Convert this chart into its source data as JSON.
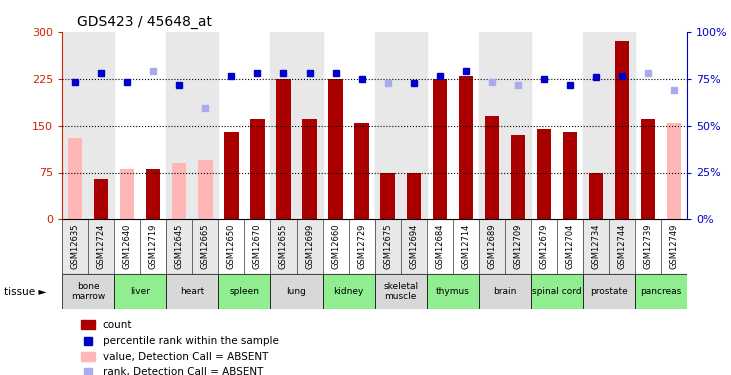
{
  "title": "GDS423 / 45648_at",
  "samples": [
    "GSM12635",
    "GSM12724",
    "GSM12640",
    "GSM12719",
    "GSM12645",
    "GSM12665",
    "GSM12650",
    "GSM12670",
    "GSM12655",
    "GSM12699",
    "GSM12660",
    "GSM12729",
    "GSM12675",
    "GSM12694",
    "GSM12684",
    "GSM12714",
    "GSM12689",
    "GSM12709",
    "GSM12679",
    "GSM12704",
    "GSM12734",
    "GSM12744",
    "GSM12739",
    "GSM12749"
  ],
  "tissues": [
    {
      "name": "bone\nmarrow",
      "start": 0,
      "end": 2,
      "color": "#d8d8d8"
    },
    {
      "name": "liver",
      "start": 2,
      "end": 4,
      "color": "#90ee90"
    },
    {
      "name": "heart",
      "start": 4,
      "end": 6,
      "color": "#d8d8d8"
    },
    {
      "name": "spleen",
      "start": 6,
      "end": 8,
      "color": "#90ee90"
    },
    {
      "name": "lung",
      "start": 8,
      "end": 10,
      "color": "#d8d8d8"
    },
    {
      "name": "kidney",
      "start": 10,
      "end": 12,
      "color": "#90ee90"
    },
    {
      "name": "skeletal\nmuscle",
      "start": 12,
      "end": 14,
      "color": "#d8d8d8"
    },
    {
      "name": "thymus",
      "start": 14,
      "end": 16,
      "color": "#90ee90"
    },
    {
      "name": "brain",
      "start": 16,
      "end": 18,
      "color": "#d8d8d8"
    },
    {
      "name": "spinal cord",
      "start": 18,
      "end": 20,
      "color": "#90ee90"
    },
    {
      "name": "prostate",
      "start": 20,
      "end": 22,
      "color": "#d8d8d8"
    },
    {
      "name": "pancreas",
      "start": 22,
      "end": 24,
      "color": "#90ee90"
    }
  ],
  "xtick_col_gray": "#d8d8d8",
  "bar_values": [
    130,
    65,
    80,
    80,
    90,
    95,
    140,
    160,
    225,
    160,
    225,
    155,
    75,
    75,
    225,
    230,
    165,
    135,
    145,
    140,
    75,
    285,
    160,
    155
  ],
  "bar_absent": [
    true,
    false,
    true,
    false,
    true,
    true,
    false,
    false,
    false,
    false,
    false,
    false,
    false,
    false,
    false,
    false,
    false,
    false,
    false,
    false,
    false,
    false,
    false,
    true
  ],
  "rank_values": [
    220,
    235,
    220,
    237,
    215,
    178,
    230,
    235,
    235,
    235,
    235,
    225,
    218,
    218,
    230,
    237,
    220,
    215,
    225,
    215,
    228,
    230,
    235,
    207
  ],
  "rank_absent": [
    false,
    false,
    false,
    true,
    false,
    true,
    false,
    false,
    false,
    false,
    false,
    false,
    true,
    false,
    false,
    false,
    true,
    true,
    false,
    false,
    false,
    false,
    true,
    true
  ],
  "ylim": [
    0,
    300
  ],
  "yticks": [
    0,
    75,
    150,
    225,
    300
  ],
  "ytick_labels": [
    "0",
    "75",
    "150",
    "225",
    "300"
  ],
  "right_ytick_labels": [
    "0%",
    "25%",
    "50%",
    "75%",
    "100%"
  ],
  "hlines": [
    75,
    150,
    225
  ],
  "bar_color_present": "#aa0000",
  "bar_color_absent": "#ffb6b6",
  "rank_color_present": "#0000cc",
  "rank_color_absent": "#aaaaee",
  "title_fontsize": 10,
  "axis_label_color_left": "#cc2200",
  "axis_label_color_right": "#0000cc"
}
